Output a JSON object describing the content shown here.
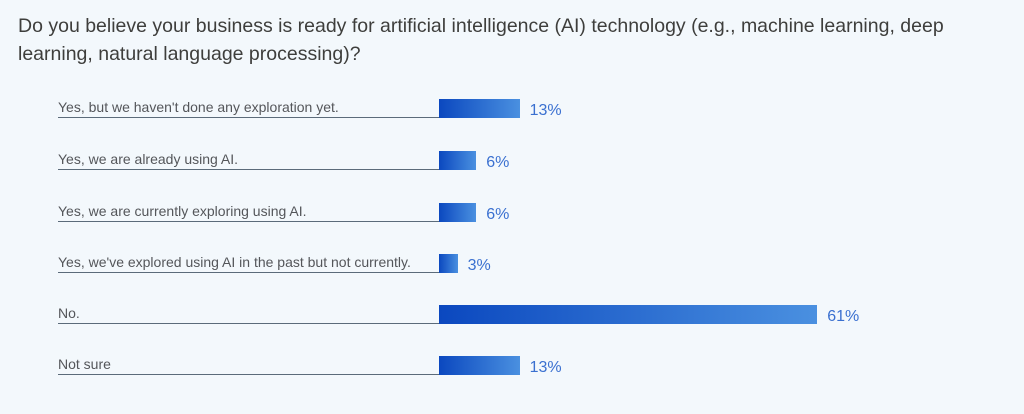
{
  "chart_data": {
    "type": "bar",
    "orientation": "horizontal",
    "title": "Do you believe your business is ready for artificial intelligence (AI) technology (e.g., machine learning, deep learning, natural language processing)?",
    "categories": [
      "Yes, but we haven't done any exploration yet.",
      "Yes, we are already using AI.",
      "Yes, we are currently exploring using AI.",
      "Yes, we've explored using AI in the past but not currently.",
      "No.",
      "Not sure"
    ],
    "values": [
      13,
      6,
      6,
      3,
      61,
      13
    ],
    "value_labels": [
      "13%",
      "6%",
      "6%",
      "3%",
      "61%",
      "13%"
    ],
    "colors": {
      "bar_start": "#0b48bf",
      "bar_end": "#4a90e0",
      "value_text": "#3a70d0"
    }
  }
}
